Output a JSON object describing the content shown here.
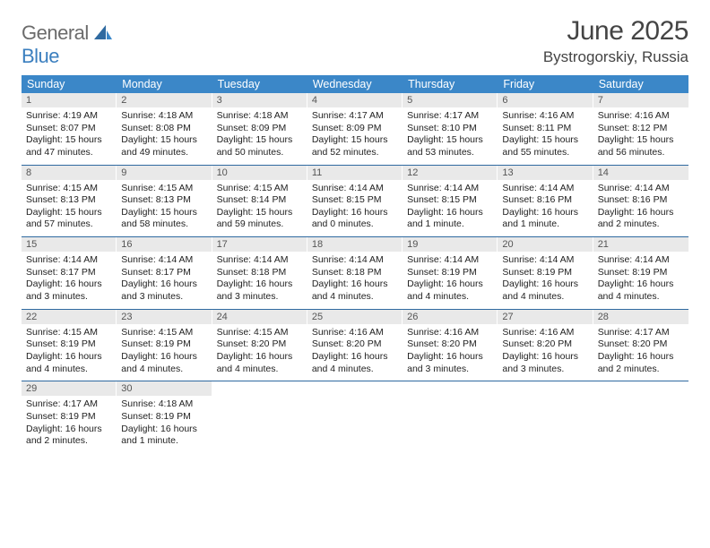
{
  "brand": {
    "general": "General",
    "blue": "Blue"
  },
  "title": "June 2025",
  "location": "Bystrogorskiy, Russia",
  "colors": {
    "header_bg": "#3b87c8",
    "rule": "#2f6aa0",
    "daynum_bg": "#e9e9e9",
    "logo_grey": "#6b6b6b",
    "logo_blue": "#3b7fbf"
  },
  "fonts": {
    "title_size": 30,
    "location_size": 17,
    "dayhead_size": 12.5,
    "body_size": 10.5
  },
  "day_names": [
    "Sunday",
    "Monday",
    "Tuesday",
    "Wednesday",
    "Thursday",
    "Friday",
    "Saturday"
  ],
  "weeks": [
    [
      {
        "n": "1",
        "sr": "4:19 AM",
        "ss": "8:07 PM",
        "dl": "15 hours and 47 minutes."
      },
      {
        "n": "2",
        "sr": "4:18 AM",
        "ss": "8:08 PM",
        "dl": "15 hours and 49 minutes."
      },
      {
        "n": "3",
        "sr": "4:18 AM",
        "ss": "8:09 PM",
        "dl": "15 hours and 50 minutes."
      },
      {
        "n": "4",
        "sr": "4:17 AM",
        "ss": "8:09 PM",
        "dl": "15 hours and 52 minutes."
      },
      {
        "n": "5",
        "sr": "4:17 AM",
        "ss": "8:10 PM",
        "dl": "15 hours and 53 minutes."
      },
      {
        "n": "6",
        "sr": "4:16 AM",
        "ss": "8:11 PM",
        "dl": "15 hours and 55 minutes."
      },
      {
        "n": "7",
        "sr": "4:16 AM",
        "ss": "8:12 PM",
        "dl": "15 hours and 56 minutes."
      }
    ],
    [
      {
        "n": "8",
        "sr": "4:15 AM",
        "ss": "8:13 PM",
        "dl": "15 hours and 57 minutes."
      },
      {
        "n": "9",
        "sr": "4:15 AM",
        "ss": "8:13 PM",
        "dl": "15 hours and 58 minutes."
      },
      {
        "n": "10",
        "sr": "4:15 AM",
        "ss": "8:14 PM",
        "dl": "15 hours and 59 minutes."
      },
      {
        "n": "11",
        "sr": "4:14 AM",
        "ss": "8:15 PM",
        "dl": "16 hours and 0 minutes."
      },
      {
        "n": "12",
        "sr": "4:14 AM",
        "ss": "8:15 PM",
        "dl": "16 hours and 1 minute."
      },
      {
        "n": "13",
        "sr": "4:14 AM",
        "ss": "8:16 PM",
        "dl": "16 hours and 1 minute."
      },
      {
        "n": "14",
        "sr": "4:14 AM",
        "ss": "8:16 PM",
        "dl": "16 hours and 2 minutes."
      }
    ],
    [
      {
        "n": "15",
        "sr": "4:14 AM",
        "ss": "8:17 PM",
        "dl": "16 hours and 3 minutes."
      },
      {
        "n": "16",
        "sr": "4:14 AM",
        "ss": "8:17 PM",
        "dl": "16 hours and 3 minutes."
      },
      {
        "n": "17",
        "sr": "4:14 AM",
        "ss": "8:18 PM",
        "dl": "16 hours and 3 minutes."
      },
      {
        "n": "18",
        "sr": "4:14 AM",
        "ss": "8:18 PM",
        "dl": "16 hours and 4 minutes."
      },
      {
        "n": "19",
        "sr": "4:14 AM",
        "ss": "8:19 PM",
        "dl": "16 hours and 4 minutes."
      },
      {
        "n": "20",
        "sr": "4:14 AM",
        "ss": "8:19 PM",
        "dl": "16 hours and 4 minutes."
      },
      {
        "n": "21",
        "sr": "4:14 AM",
        "ss": "8:19 PM",
        "dl": "16 hours and 4 minutes."
      }
    ],
    [
      {
        "n": "22",
        "sr": "4:15 AM",
        "ss": "8:19 PM",
        "dl": "16 hours and 4 minutes."
      },
      {
        "n": "23",
        "sr": "4:15 AM",
        "ss": "8:19 PM",
        "dl": "16 hours and 4 minutes."
      },
      {
        "n": "24",
        "sr": "4:15 AM",
        "ss": "8:20 PM",
        "dl": "16 hours and 4 minutes."
      },
      {
        "n": "25",
        "sr": "4:16 AM",
        "ss": "8:20 PM",
        "dl": "16 hours and 4 minutes."
      },
      {
        "n": "26",
        "sr": "4:16 AM",
        "ss": "8:20 PM",
        "dl": "16 hours and 3 minutes."
      },
      {
        "n": "27",
        "sr": "4:16 AM",
        "ss": "8:20 PM",
        "dl": "16 hours and 3 minutes."
      },
      {
        "n": "28",
        "sr": "4:17 AM",
        "ss": "8:20 PM",
        "dl": "16 hours and 2 minutes."
      }
    ],
    [
      {
        "n": "29",
        "sr": "4:17 AM",
        "ss": "8:19 PM",
        "dl": "16 hours and 2 minutes."
      },
      {
        "n": "30",
        "sr": "4:18 AM",
        "ss": "8:19 PM",
        "dl": "16 hours and 1 minute."
      },
      null,
      null,
      null,
      null,
      null
    ]
  ],
  "labels": {
    "sunrise": "Sunrise: ",
    "sunset": "Sunset: ",
    "daylight": "Daylight: "
  }
}
